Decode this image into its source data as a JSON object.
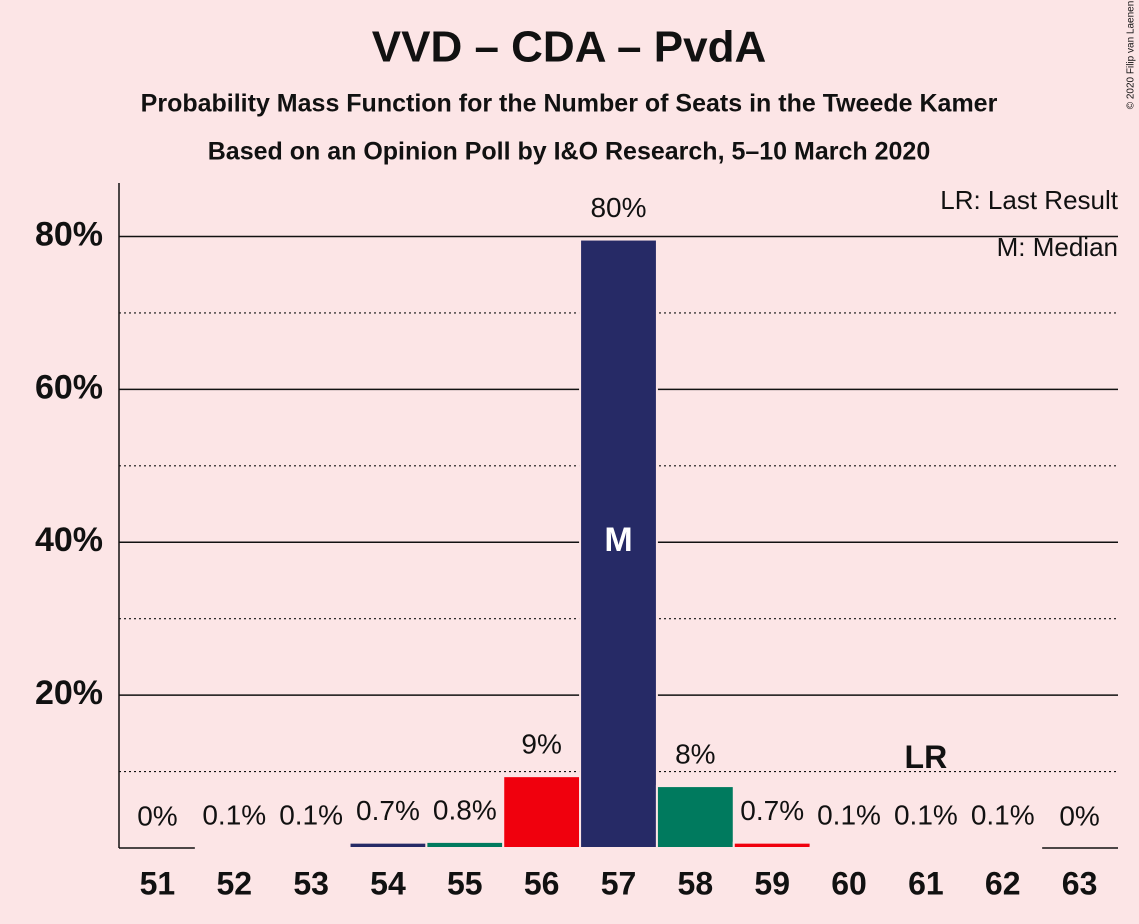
{
  "chart_data": {
    "type": "bar",
    "title": "VVD – CDA – PvdA",
    "subtitle": "Probability Mass Function for the Number of Seats in the Tweede Kamer",
    "subtitle2": "Based on an Opinion Poll by I&O Research, 5–10 March 2020",
    "copyright": "© 2020 Filip van Laenen",
    "categories": [
      51,
      52,
      53,
      54,
      55,
      56,
      57,
      58,
      59,
      60,
      61,
      62,
      63
    ],
    "values": [
      0,
      0.1,
      0.1,
      0.7,
      0.8,
      9.4,
      79.6,
      8.1,
      0.7,
      0.1,
      0.1,
      0.1,
      0
    ],
    "value_labels": [
      "0%",
      "0.1%",
      "0.1%",
      "0.7%",
      "0.8%",
      "9%",
      "80%",
      "8%",
      "0.7%",
      "0.1%",
      "0.1%",
      "0.1%",
      "0%"
    ],
    "colors": [
      "#262a66",
      "#262a66",
      "#262a66",
      "#262a66",
      "#007a5e",
      "#f0000d",
      "#262a66",
      "#007a5e",
      "#f0000d",
      "#262a66",
      "#007a5e",
      "#f0000d",
      "#262a66"
    ],
    "ylim": [
      0,
      87
    ],
    "yticks": [
      {
        "value": 20,
        "label": "20%"
      },
      {
        "value": 40,
        "label": "40%"
      },
      {
        "value": 60,
        "label": "60%"
      },
      {
        "value": 80,
        "label": "80%"
      }
    ],
    "minor_yticks": [
      10,
      30,
      50,
      70
    ],
    "grid": true,
    "median": 57,
    "median_label": "M",
    "last_result": 61,
    "last_result_label": "LR",
    "legend": [
      "LR: Last Result",
      "M: Median"
    ],
    "legend_corner": "top-right"
  }
}
